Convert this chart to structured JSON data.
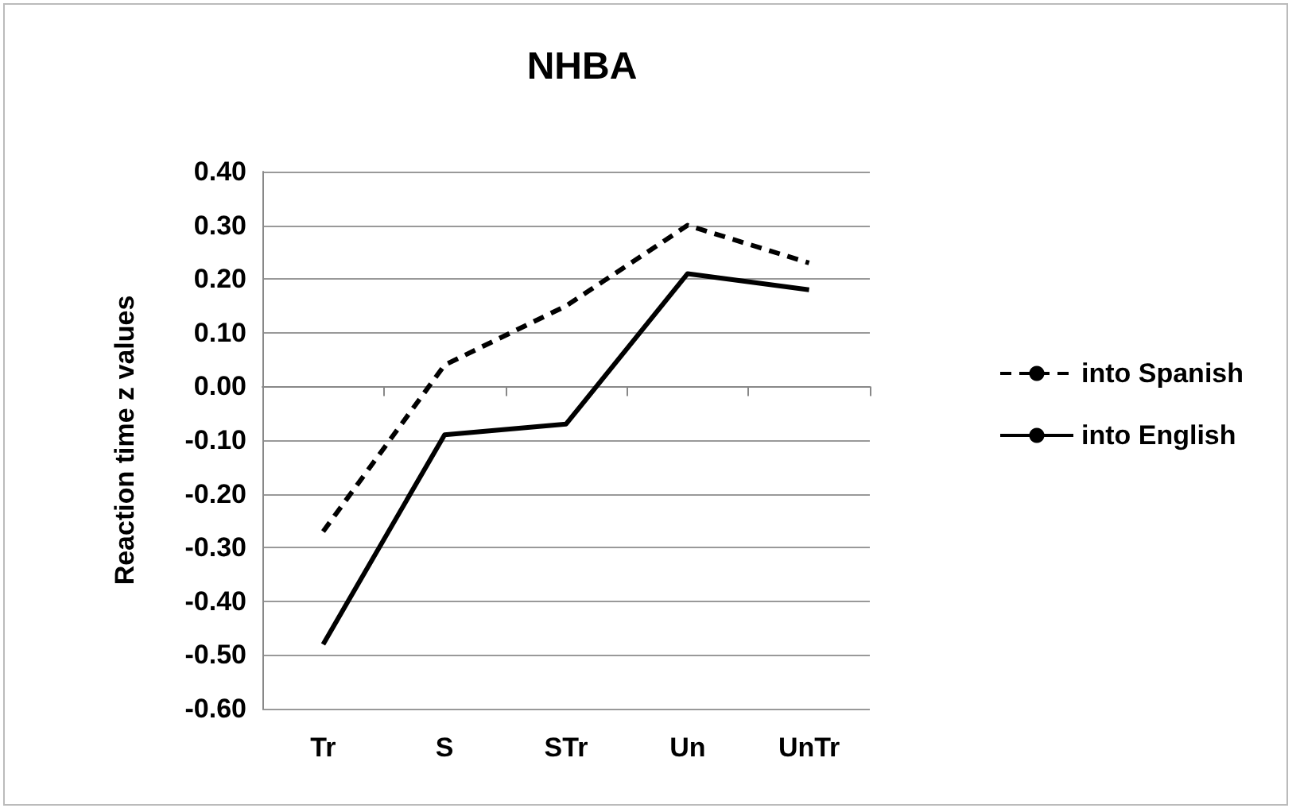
{
  "chart_data": {
    "type": "line",
    "title": "NHBA",
    "ylabel": "Reaction time z values",
    "categories": [
      "Tr",
      "S",
      "STr",
      "Un",
      "UnTr"
    ],
    "series": [
      {
        "name": "into Spanish",
        "color": "#000000",
        "line_style": "dashed",
        "values": [
          -0.27,
          0.04,
          0.15,
          0.3,
          0.23
        ]
      },
      {
        "name": "into English",
        "color": "#000000",
        "line_style": "solid",
        "values": [
          -0.48,
          -0.09,
          -0.07,
          0.21,
          0.18
        ]
      }
    ],
    "ylim": [
      -0.6,
      0.4
    ],
    "yticks": [
      {
        "value": -0.6,
        "label": "-0.60"
      },
      {
        "value": -0.5,
        "label": "-0.50"
      },
      {
        "value": -0.4,
        "label": "-0.40"
      },
      {
        "value": -0.3,
        "label": "-0.30"
      },
      {
        "value": -0.2,
        "label": "-0.20"
      },
      {
        "value": -0.1,
        "label": "-0.10"
      },
      {
        "value": 0,
        "label": "0.00"
      },
      {
        "value": 0.1,
        "label": "0.10"
      },
      {
        "value": 0.2,
        "label": "0.20"
      },
      {
        "value": 0.3,
        "label": "0.30"
      },
      {
        "value": 0.4,
        "label": "0.40"
      }
    ],
    "grid": "y",
    "legend": "right",
    "marker": "none"
  }
}
